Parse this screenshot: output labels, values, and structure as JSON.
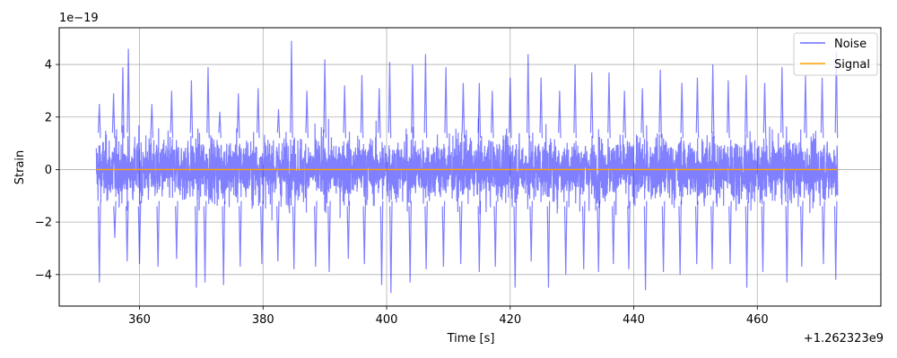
{
  "chart_data": {
    "type": "line",
    "xlabel": "Time [s]",
    "ylabel": "Strain",
    "x_offset_label": "+1.262323e9",
    "y_scale_label": "1e−19",
    "xlim": [
      347,
      480
    ],
    "ylim": [
      -5.2,
      5.4
    ],
    "x_ticks": [
      360,
      380,
      400,
      420,
      440,
      460
    ],
    "x_tick_labels": [
      "360",
      "380",
      "400",
      "420",
      "440",
      "460"
    ],
    "y_ticks": [
      -4,
      -2,
      0,
      2,
      4
    ],
    "y_tick_labels": [
      "−4",
      "−2",
      "0",
      "2",
      "4"
    ],
    "grid": true,
    "legend_position": "top-right",
    "x_range": [
      353,
      473
    ],
    "series": [
      {
        "name": "Noise",
        "color": "#0000ff",
        "opacity": 0.5,
        "peaks": [
          [
            353.5,
            2.5
          ],
          [
            355.8,
            2.9
          ],
          [
            357.3,
            3.9
          ],
          [
            358.2,
            4.6
          ],
          [
            362.0,
            2.5
          ],
          [
            365.2,
            3.0
          ],
          [
            368.4,
            3.4
          ],
          [
            371.1,
            3.9
          ],
          [
            373.0,
            2.2
          ],
          [
            376.0,
            2.9
          ],
          [
            379.2,
            3.1
          ],
          [
            382.5,
            2.3
          ],
          [
            384.6,
            4.9
          ],
          [
            387.1,
            3.0
          ],
          [
            390.0,
            4.2
          ],
          [
            393.2,
            3.2
          ],
          [
            396.0,
            3.6
          ],
          [
            398.8,
            3.1
          ],
          [
            400.5,
            4.1
          ],
          [
            404.2,
            4.0
          ],
          [
            406.3,
            4.4
          ],
          [
            409.6,
            3.9
          ],
          [
            412.4,
            3.3
          ],
          [
            415.0,
            3.3
          ],
          [
            417.1,
            3.0
          ],
          [
            420.0,
            3.5
          ],
          [
            422.9,
            4.4
          ],
          [
            425.0,
            3.5
          ],
          [
            428.0,
            3.0
          ],
          [
            430.5,
            4.0
          ],
          [
            433.2,
            3.7
          ],
          [
            436.0,
            3.7
          ],
          [
            438.5,
            3.0
          ],
          [
            441.4,
            3.1
          ],
          [
            444.3,
            3.8
          ],
          [
            447.8,
            3.3
          ],
          [
            450.3,
            3.5
          ],
          [
            452.8,
            4.0
          ],
          [
            455.3,
            3.4
          ],
          [
            458.2,
            3.6
          ],
          [
            461.2,
            3.3
          ],
          [
            464.0,
            3.9
          ],
          [
            467.8,
            3.6
          ],
          [
            470.5,
            3.5
          ],
          [
            472.8,
            4.5
          ]
        ],
        "troughs": [
          [
            353.5,
            -4.3
          ],
          [
            356.0,
            -2.6
          ],
          [
            358.0,
            -3.5
          ],
          [
            360.0,
            -3.6
          ],
          [
            363.0,
            -3.7
          ],
          [
            366.0,
            -3.4
          ],
          [
            369.2,
            -4.5
          ],
          [
            370.6,
            -4.3
          ],
          [
            373.6,
            -4.4
          ],
          [
            376.3,
            -3.7
          ],
          [
            379.8,
            -3.6
          ],
          [
            382.4,
            -3.5
          ],
          [
            385.0,
            -3.8
          ],
          [
            388.5,
            -3.7
          ],
          [
            390.7,
            -3.9
          ],
          [
            393.8,
            -3.4
          ],
          [
            396.4,
            -3.6
          ],
          [
            399.2,
            -4.4
          ],
          [
            400.7,
            -4.7
          ],
          [
            403.8,
            -4.3
          ],
          [
            406.4,
            -3.8
          ],
          [
            409.2,
            -3.7
          ],
          [
            412.0,
            -3.6
          ],
          [
            415.0,
            -3.9
          ],
          [
            417.6,
            -3.7
          ],
          [
            420.8,
            -4.5
          ],
          [
            423.4,
            -3.5
          ],
          [
            426.2,
            -4.5
          ],
          [
            429.0,
            -4.0
          ],
          [
            431.9,
            -3.8
          ],
          [
            434.3,
            -3.9
          ],
          [
            436.7,
            -3.6
          ],
          [
            439.2,
            -3.8
          ],
          [
            441.9,
            -4.6
          ],
          [
            444.8,
            -3.9
          ],
          [
            447.5,
            -4.0
          ],
          [
            450.2,
            -3.6
          ],
          [
            452.7,
            -3.8
          ],
          [
            455.6,
            -3.6
          ],
          [
            458.3,
            -4.5
          ],
          [
            460.9,
            -3.9
          ],
          [
            464.8,
            -4.3
          ],
          [
            467.2,
            -3.7
          ],
          [
            470.7,
            -3.6
          ],
          [
            472.7,
            -4.2
          ]
        ]
      },
      {
        "name": "Signal",
        "color": "#ffa500",
        "opacity": 1.0,
        "values_constant": 0.0
      }
    ]
  }
}
